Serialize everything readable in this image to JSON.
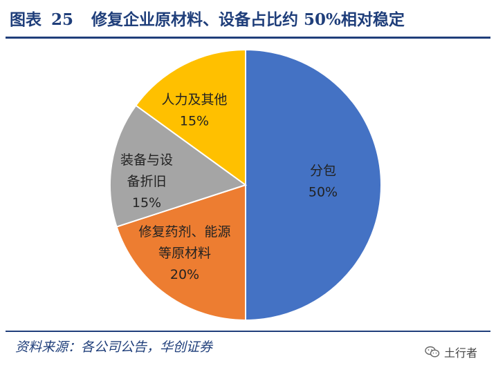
{
  "header": {
    "figure_label": "图表",
    "figure_number": "25",
    "title": "修复企业原材料、设备占比约 50%相对稳定"
  },
  "footer": {
    "source": "资料来源：各公司公告，华创证券",
    "watermark": "土行者",
    "watermark_icon": "wechat-icon"
  },
  "colors": {
    "title": "#1f3e7a",
    "slice_1": "#4472c4",
    "slice_2": "#ed7d31",
    "slice_3": "#a5a5a5",
    "slice_4": "#ffc000"
  },
  "chart_data": {
    "type": "pie",
    "title": "",
    "slices": [
      {
        "label": [
          "分包"
        ],
        "value": 50,
        "value_label": "50%",
        "color": "#4472c4"
      },
      {
        "label": [
          "修复药剂、能源",
          "等原材料"
        ],
        "value": 20,
        "value_label": "20%",
        "color": "#ed7d31"
      },
      {
        "label": [
          "装备与设",
          "备折旧"
        ],
        "value": 15,
        "value_label": "15%",
        "color": "#a5a5a5"
      },
      {
        "label": [
          "人力及其他"
        ],
        "value": 15,
        "value_label": "15%",
        "color": "#ffc000"
      }
    ],
    "start": "12 o'clock",
    "direction": "clockwise",
    "legend": "none"
  }
}
